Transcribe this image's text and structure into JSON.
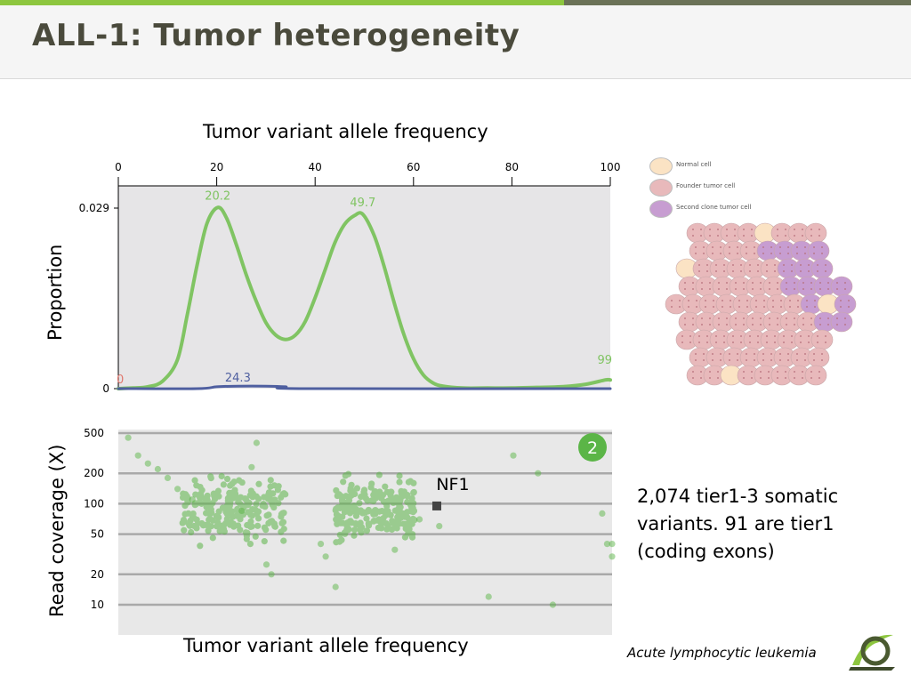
{
  "slide": {
    "title": "ALL-1: Tumor heterogeneity",
    "summary_line1": "2,074 tier1-3 somatic",
    "summary_line2": "variants. 91 are tier1",
    "summary_line3": "(coding exons)",
    "footer_note": "Acute lymphocytic leukemia"
  },
  "colors": {
    "accent_green": "#8dc63f",
    "accent_dark": "#6b7257",
    "series_green": "#80c463",
    "scatter_green": "#5cb548",
    "baseline_blue": "#4f5fa0",
    "normal_cell": "#fbe3c4",
    "founder_cell": "#e8b9bb",
    "clone_cell": "#c79dd1"
  },
  "cell_legend": {
    "items": [
      {
        "label": "Normal cell",
        "color": "#fbe3c4"
      },
      {
        "label": "Founder tumor cell",
        "color": "#e8b9bb"
      },
      {
        "label": "Second clone tumor cell",
        "color": "#c79dd1"
      }
    ]
  },
  "chart_data": [
    {
      "type": "line",
      "title": "Tumor variant allele frequency",
      "xlabel": "",
      "ylabel": "Proportion",
      "xlim": [
        0,
        100
      ],
      "ylim": [
        0,
        0.029
      ],
      "x_ticks": [
        0,
        20,
        40,
        60,
        80,
        100
      ],
      "y_ticks": [
        "0",
        "0.029"
      ],
      "series": [
        {
          "x": [
            0,
            3,
            6,
            9,
            12,
            14,
            16,
            18,
            20.2,
            22,
            24,
            26,
            28,
            30,
            32,
            34,
            36,
            38,
            40,
            42,
            44,
            46,
            48,
            49.7,
            52,
            54,
            56,
            58,
            60,
            62,
            64,
            66,
            70,
            75,
            80,
            85,
            90,
            95,
            99,
            100
          ],
          "y": [
            0,
            0.0001,
            0.0003,
            0.0012,
            0.0046,
            0.0118,
            0.0198,
            0.0265,
            0.0291,
            0.0274,
            0.0231,
            0.0183,
            0.0141,
            0.0106,
            0.0086,
            0.0079,
            0.0086,
            0.0108,
            0.0146,
            0.019,
            0.0234,
            0.0264,
            0.0278,
            0.028,
            0.0246,
            0.0197,
            0.014,
            0.0088,
            0.0048,
            0.0022,
            0.0009,
            0.0004,
            0.0001,
            0.0001,
            0.0001,
            0.0002,
            0.0003,
            0.0007,
            0.0014,
            0.0014
          ]
        },
        {
          "x": [
            0,
            16,
            20,
            24.3,
            30,
            34,
            38,
            100
          ],
          "y": [
            0,
            0,
            0.0003,
            0.0004,
            0.0004,
            0.0003,
            0,
            0
          ]
        }
      ],
      "annotations": [
        {
          "text": "20.2",
          "x": 20.2,
          "y": 0.0291,
          "color": "#80c463"
        },
        {
          "text": "49.7",
          "x": 49.7,
          "y": 0.028,
          "color": "#80c463"
        },
        {
          "text": "24.3",
          "x": 24.3,
          "y": 0.0004,
          "color": "#4f5fa0"
        },
        {
          "text": "0",
          "x": 0,
          "y": 0,
          "color": "#e0786e"
        },
        {
          "text": "99",
          "x": 99,
          "y": 0.0014,
          "color": "#80c463"
        }
      ],
      "grid": false
    },
    {
      "type": "scatter",
      "xlabel": "Tumor variant allele frequency",
      "ylabel": "Read coverage (X)",
      "xlim": [
        0,
        100
      ],
      "y_scale": "log",
      "y_ticks": [
        10,
        20,
        50,
        100,
        200,
        500
      ],
      "grid": true,
      "highlight": {
        "label": "NF1",
        "x": 64.5,
        "y": 95
      },
      "badge": "2",
      "series": [
        {
          "name": "",
          "x": [
            2,
            4,
            6,
            8,
            10,
            12,
            15,
            25,
            27,
            28,
            30,
            31,
            41,
            42,
            44,
            56,
            61,
            65,
            75,
            80,
            85,
            88,
            98,
            99,
            100,
            100
          ],
          "y": [
            450,
            300,
            250,
            220,
            180,
            140,
            110,
            85,
            230,
            400,
            25,
            20,
            40,
            30,
            15,
            35,
            70,
            60,
            12,
            300,
            200,
            10,
            80,
            40,
            40,
            30
          ]
        }
      ]
    }
  ]
}
